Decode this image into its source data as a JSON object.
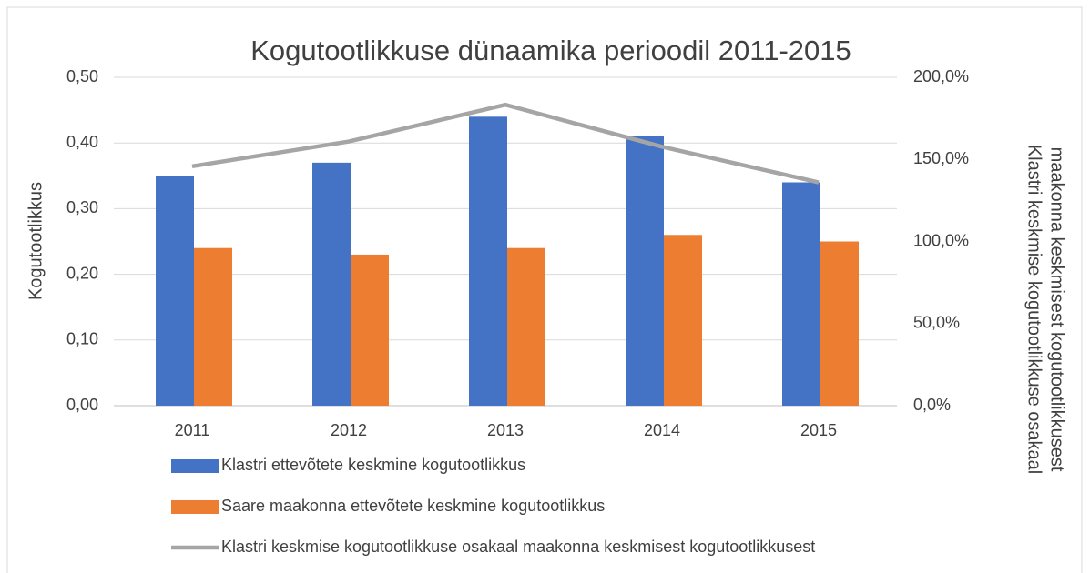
{
  "chart_data": {
    "type": "bar",
    "title": "Kogutootlikkuse dünaamika perioodil 2011-2015",
    "ylabel": "Kogutootlikkus",
    "y2label": [
      "Klastri keskmise kogutootlikkuse osakaal",
      "maakonna keskmisest kogutootlikkusest"
    ],
    "categories": [
      "2011",
      "2012",
      "2013",
      "2014",
      "2015"
    ],
    "series": [
      {
        "name": "Klastri ettevõtete keskmine kogutootlikkus",
        "color": "#4472c4",
        "type": "bar",
        "values": [
          0.35,
          0.37,
          0.44,
          0.41,
          0.34
        ]
      },
      {
        "name": "Saare maakonna ettevõtete keskmine kogutootlikkus",
        "color": "#ed7d31",
        "type": "bar",
        "values": [
          0.24,
          0.23,
          0.24,
          0.26,
          0.25
        ]
      },
      {
        "name": "Klastri keskmise kogutootlikkuse osakaal maakonna keskmisest kogutootlikkusest",
        "color": "#a5a5a5",
        "type": "line",
        "axis": "y2",
        "values": [
          145.8,
          160.9,
          183.3,
          157.7,
          136.0
        ]
      }
    ],
    "ylim": [
      0,
      0.5
    ],
    "yticks": [
      {
        "value": 0,
        "label": "0,00"
      },
      {
        "value": 0.1,
        "label": "0,10"
      },
      {
        "value": 0.2,
        "label": "0,20"
      },
      {
        "value": 0.3,
        "label": "0,30"
      },
      {
        "value": 0.4,
        "label": "0,40"
      },
      {
        "value": 0.5,
        "label": "0,50"
      }
    ],
    "y2lim": [
      0,
      200
    ],
    "y2ticks": [
      {
        "value": 0,
        "label": "0,0%"
      },
      {
        "value": 50,
        "label": "50,0%"
      },
      {
        "value": 100,
        "label": "100,0%"
      },
      {
        "value": 150,
        "label": "150,0%"
      },
      {
        "value": 200,
        "label": "200,0%"
      }
    ],
    "grid": true,
    "legend": "bottom"
  }
}
